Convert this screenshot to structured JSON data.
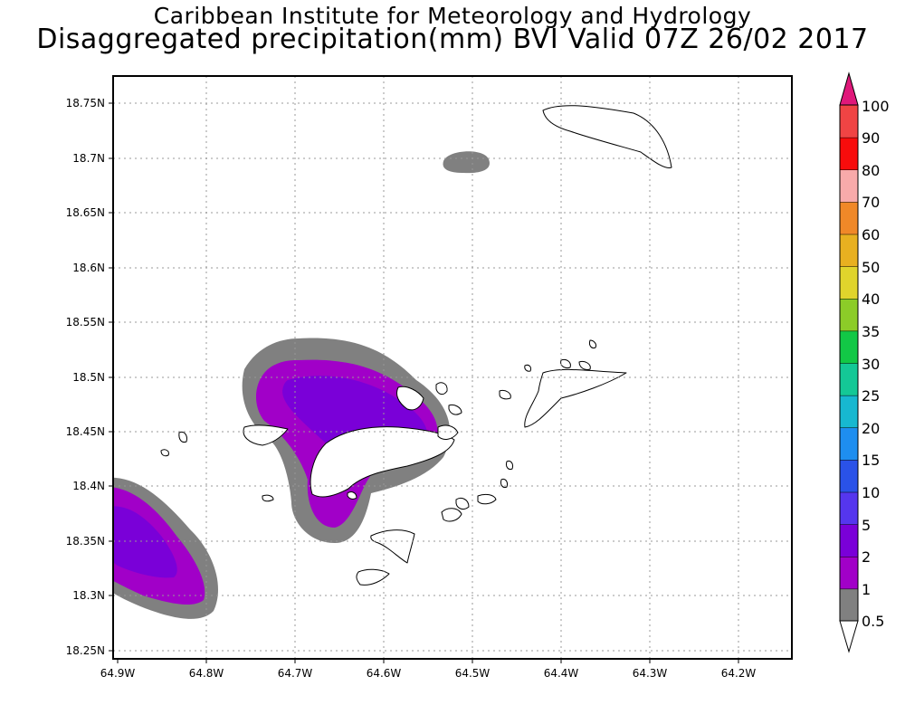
{
  "header": {
    "line1": "Caribbean Institute for Meteorology and Hydrology",
    "line2": "Disaggregated precipitation(mm) BVI Valid 07Z 26/02 2017"
  },
  "map": {
    "lon_ticks": [
      "64.9W",
      "64.8W",
      "64.7W",
      "64.6W",
      "64.5W",
      "64.4W",
      "64.3W",
      "64.2W"
    ],
    "lat_ticks": [
      "18.75N",
      "18.7N",
      "18.65N",
      "18.6N",
      "18.55N",
      "18.5N",
      "18.45N",
      "18.4N",
      "18.35N",
      "18.3N",
      "18.25N"
    ],
    "lon_range": [
      -64.91,
      -64.14
    ],
    "lat_range": [
      18.245,
      18.775
    ],
    "gridlines": "dotted"
  },
  "colorbar": {
    "levels": [
      "0.5",
      "1",
      "2",
      "5",
      "10",
      "15",
      "20",
      "25",
      "30",
      "35",
      "40",
      "50",
      "60",
      "70",
      "80",
      "90",
      "100"
    ],
    "colors": [
      "#808080",
      "#a100c8",
      "#7a00d8",
      "#5536ee",
      "#2a52e8",
      "#1e8ef0",
      "#17b8d0",
      "#14c896",
      "#12c846",
      "#8ccc28",
      "#e0d42c",
      "#e8b020",
      "#f08828",
      "#f8aaaa",
      "#f80c0c",
      "#f04444",
      "#e0187a"
    ]
  }
}
